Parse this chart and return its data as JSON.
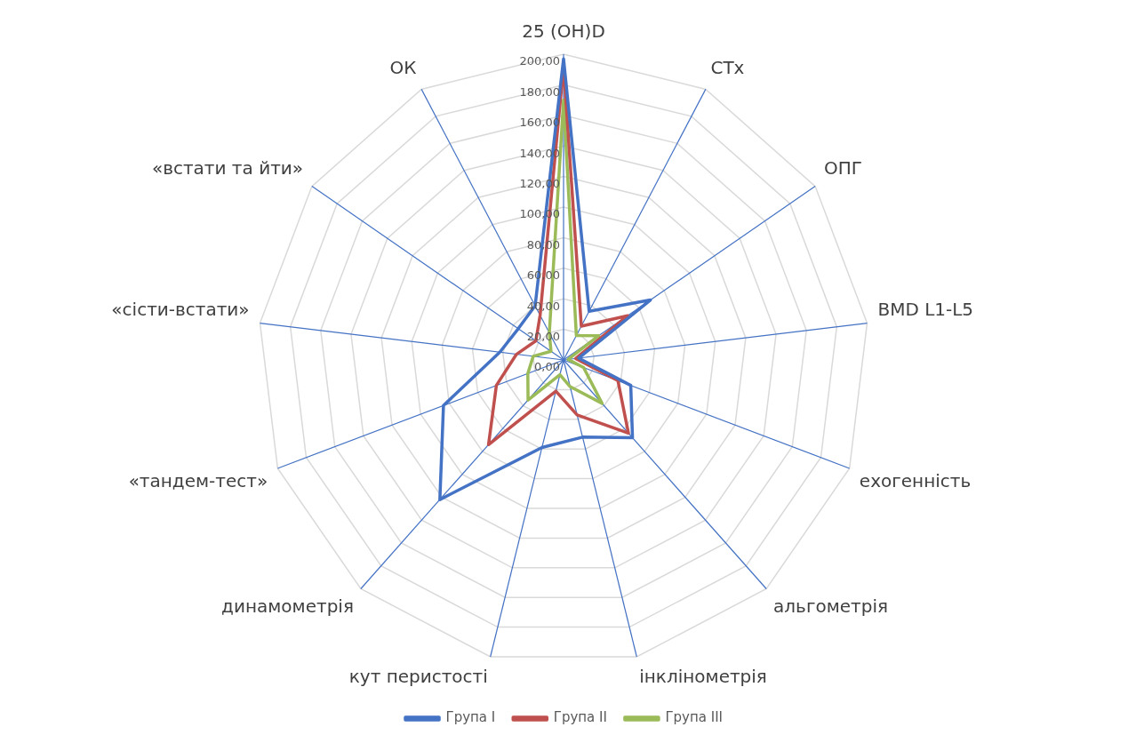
{
  "chart_data": {
    "type": "radar",
    "categories": [
      "25 (OH)D",
      "CTx",
      "ОПГ",
      "BMD L1-L5",
      "ехогенність",
      "альгометрія",
      "інклінометрія",
      "кут перистості",
      "динамометрія",
      "«тандем-тест»",
      "«сісти-встати»",
      "«встати та йти»",
      "ОК"
    ],
    "series": [
      {
        "name": "Група I",
        "color": "#4472c4",
        "values": [
          197,
          36,
          69,
          10,
          47,
          68,
          52,
          59,
          122,
          84,
          42,
          36,
          40
        ]
      },
      {
        "name": "Група II",
        "color": "#c0504d",
        "values": [
          192,
          25,
          51,
          8,
          38,
          64,
          37,
          21,
          74,
          47,
          31,
          22,
          33
        ]
      },
      {
        "name": "Група III",
        "color": "#9bbb59",
        "values": [
          170,
          18,
          28,
          3,
          14,
          38,
          18,
          10,
          35,
          25,
          20,
          10,
          20
        ]
      }
    ],
    "ylim": [
      0,
      200
    ],
    "yticks": [
      {
        "value": 0,
        "label": "0,00"
      },
      {
        "value": 20,
        "label": "20,00"
      },
      {
        "value": 40,
        "label": "40,00"
      },
      {
        "value": 60,
        "label": "60,00"
      },
      {
        "value": 80,
        "label": "80,00"
      },
      {
        "value": 100,
        "label": "100,00"
      },
      {
        "value": 120,
        "label": "120,00"
      },
      {
        "value": 140,
        "label": "140,00"
      },
      {
        "value": 160,
        "label": "160,00"
      },
      {
        "value": 180,
        "label": "180,00"
      },
      {
        "value": 200,
        "label": "200,00"
      }
    ],
    "grid": true,
    "legend": "bottom",
    "marker": "none",
    "line_style": "solid"
  }
}
